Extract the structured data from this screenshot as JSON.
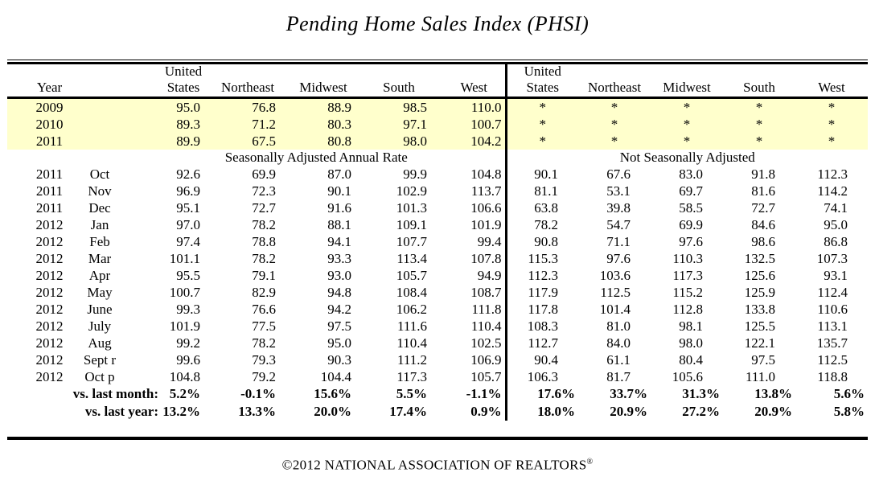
{
  "title": "Pending Home Sales Index (PHSI)",
  "footer": {
    "text": "©2012 NATIONAL ASSOCIATION OF REALTORS",
    "reg": "®"
  },
  "colors": {
    "highlight_yellow": "#FFFFCC",
    "rule_black": "#000000",
    "background": "#FFFFFF"
  },
  "table": {
    "col_headers": {
      "year": "Year",
      "united_line1": "United",
      "states": "States",
      "northeast": "Northeast",
      "midwest": "Midwest",
      "south": "South",
      "west": "West"
    },
    "section_left_subtitle": "Seasonally Adjusted Annual Rate",
    "section_right_subtitle": "Not Seasonally Adjusted",
    "annual_rows": [
      {
        "year": "2009",
        "sa": [
          "95.0",
          "76.8",
          "88.9",
          "98.5",
          "110.0"
        ],
        "nsa": [
          "*",
          "*",
          "*",
          "*",
          "*"
        ]
      },
      {
        "year": "2010",
        "sa": [
          "89.3",
          "71.2",
          "80.3",
          "97.1",
          "100.7"
        ],
        "nsa": [
          "*",
          "*",
          "*",
          "*",
          "*"
        ]
      },
      {
        "year": "2011",
        "sa": [
          "89.9",
          "67.5",
          "80.8",
          "98.0",
          "104.2"
        ],
        "nsa": [
          "*",
          "*",
          "*",
          "*",
          "*"
        ]
      }
    ],
    "monthly_rows": [
      {
        "year": "2011",
        "month": "Oct",
        "sa": [
          "92.6",
          "69.9",
          "87.0",
          "99.9",
          "104.8"
        ],
        "nsa": [
          "90.1",
          "67.6",
          "83.0",
          "91.8",
          "112.3"
        ]
      },
      {
        "year": "2011",
        "month": "Nov",
        "sa": [
          "96.9",
          "72.3",
          "90.1",
          "102.9",
          "113.7"
        ],
        "nsa": [
          "81.1",
          "53.1",
          "69.7",
          "81.6",
          "114.2"
        ]
      },
      {
        "year": "2011",
        "month": "Dec",
        "sa": [
          "95.1",
          "72.7",
          "91.6",
          "101.3",
          "106.6"
        ],
        "nsa": [
          "63.8",
          "39.8",
          "58.5",
          "72.7",
          "74.1"
        ]
      },
      {
        "year": "2012",
        "month": "Jan",
        "sa": [
          "97.0",
          "78.2",
          "88.1",
          "109.1",
          "101.9"
        ],
        "nsa": [
          "78.2",
          "54.7",
          "69.9",
          "84.6",
          "95.0"
        ]
      },
      {
        "year": "2012",
        "month": "Feb",
        "sa": [
          "97.4",
          "78.8",
          "94.1",
          "107.7",
          "99.4"
        ],
        "nsa": [
          "90.8",
          "71.1",
          "97.6",
          "98.6",
          "86.8"
        ]
      },
      {
        "year": "2012",
        "month": "Mar",
        "sa": [
          "101.1",
          "78.2",
          "93.3",
          "113.4",
          "107.8"
        ],
        "nsa": [
          "115.3",
          "97.6",
          "110.3",
          "132.5",
          "107.3"
        ]
      },
      {
        "year": "2012",
        "month": "Apr",
        "sa": [
          "95.5",
          "79.1",
          "93.0",
          "105.7",
          "94.9"
        ],
        "nsa": [
          "112.3",
          "103.6",
          "117.3",
          "125.6",
          "93.1"
        ]
      },
      {
        "year": "2012",
        "month": "May",
        "sa": [
          "100.7",
          "82.9",
          "94.8",
          "108.4",
          "108.7"
        ],
        "nsa": [
          "117.9",
          "112.5",
          "115.2",
          "125.9",
          "112.4"
        ]
      },
      {
        "year": "2012",
        "month": "June",
        "sa": [
          "99.3",
          "76.6",
          "94.2",
          "106.2",
          "111.8"
        ],
        "nsa": [
          "117.8",
          "101.4",
          "112.8",
          "133.8",
          "110.6"
        ]
      },
      {
        "year": "2012",
        "month": "July",
        "sa": [
          "101.9",
          "77.5",
          "97.5",
          "111.6",
          "110.4"
        ],
        "nsa": [
          "108.3",
          "81.0",
          "98.1",
          "125.5",
          "113.1"
        ]
      },
      {
        "year": "2012",
        "month": "Aug",
        "sa": [
          "99.2",
          "78.2",
          "95.0",
          "110.4",
          "102.5"
        ],
        "nsa": [
          "112.7",
          "84.0",
          "98.0",
          "122.1",
          "135.7"
        ]
      },
      {
        "year": "2012",
        "month": "Sept r",
        "sa": [
          "99.6",
          "79.3",
          "90.3",
          "111.2",
          "106.9"
        ],
        "nsa": [
          "90.4",
          "61.1",
          "80.4",
          "97.5",
          "112.5"
        ]
      },
      {
        "year": "2012",
        "month": "Oct p",
        "sa": [
          "104.8",
          "79.2",
          "104.4",
          "117.3",
          "105.7"
        ],
        "nsa": [
          "106.3",
          "81.7",
          "105.6",
          "111.0",
          "118.8"
        ]
      }
    ],
    "summary_rows": [
      {
        "label": "vs. last month:",
        "sa": [
          "5.2%",
          "-0.1%",
          "15.6%",
          "5.5%",
          "-1.1%"
        ],
        "nsa": [
          "17.6%",
          "33.7%",
          "31.3%",
          "13.8%",
          "5.6%"
        ]
      },
      {
        "label": "vs. last year:",
        "sa": [
          "13.2%",
          "13.3%",
          "20.0%",
          "17.4%",
          "0.9%"
        ],
        "nsa": [
          "18.0%",
          "20.9%",
          "27.2%",
          "20.9%",
          "5.8%"
        ]
      }
    ]
  }
}
